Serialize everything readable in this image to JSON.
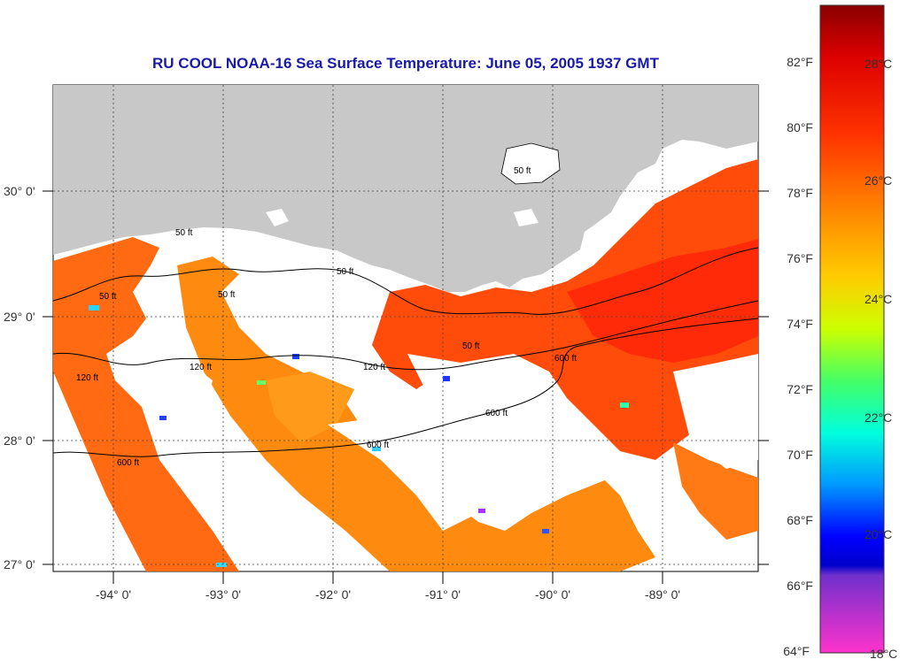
{
  "title": "RU COOL  NOAA-16  Sea Surface Temperature:  June 05, 2005 1937 GMT",
  "colors": {
    "title": "#1a1aa8",
    "land": "#c8c8c8",
    "no_data": "#ffffff"
  },
  "map": {
    "lat_labels": [
      "30° 0'",
      "29° 0'",
      "28° 0'",
      "27° 0'"
    ],
    "lon_labels": [
      "-94° 0'",
      "-93° 0'",
      "-92° 0'",
      "-91° 0'",
      "-90° 0'",
      "-89° 0'"
    ],
    "contour_labels": [
      "50 ft",
      "50 ft",
      "50 ft",
      "50 ft",
      "50 ft",
      "50 ft",
      "120 ft",
      "120 ft",
      "120 ft",
      "600 ft",
      "600 ft",
      "600 ft",
      "600 ft"
    ]
  },
  "colorbar": {
    "f_labels": [
      "82°F",
      "80°F",
      "78°F",
      "76°F",
      "74°F",
      "72°F",
      "70°F",
      "68°F",
      "66°F",
      "64°F"
    ],
    "c_labels": [
      "28°C",
      "26°C",
      "24°C",
      "22°C",
      "20°C",
      "18°C"
    ]
  }
}
